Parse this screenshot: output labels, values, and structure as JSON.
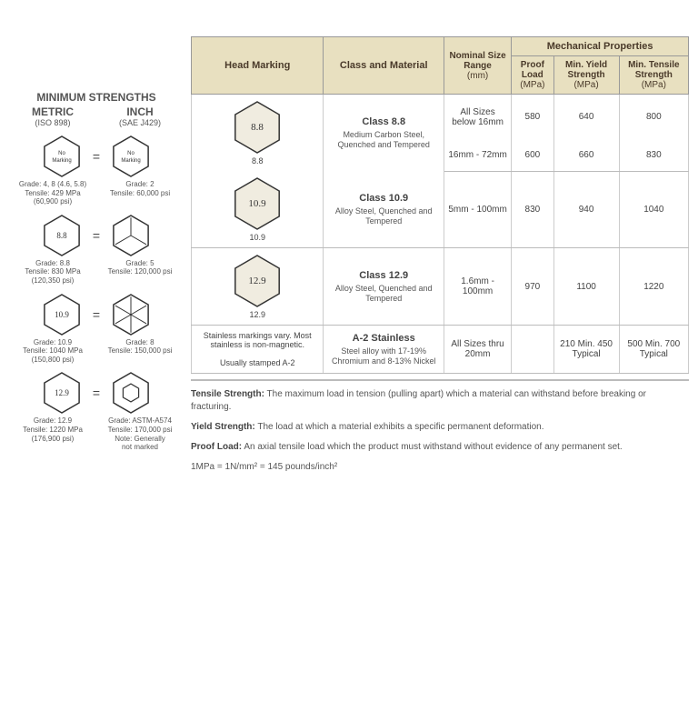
{
  "left": {
    "title": "MINIMUM STRENGTHS",
    "metric": {
      "label": "METRIC",
      "sub": "(ISO 898)"
    },
    "inch": {
      "label": "INCH",
      "sub": "(SAE J429)"
    },
    "rows": [
      {
        "metric_mark": "No Marking",
        "inch_mark": "No Marking",
        "metric_text": "Grade: 4, 8 (4.6, 5.8)\nTensile: 429 MPa\n(60,900 psi)",
        "inch_text": "Grade: 2\nTensile: 60,000 psi",
        "inch_radial": 0
      },
      {
        "metric_mark": "8.8",
        "inch_mark": "",
        "metric_text": "Grade: 8.8\nTensile: 830 MPa\n(120,350 psi)",
        "inch_text": "Grade: 5\nTensile: 120,000 psi",
        "inch_radial": 3
      },
      {
        "metric_mark": "10.9",
        "inch_mark": "",
        "metric_text": "Grade: 10.9\nTensile: 1040 MPa\n(150,800 psi)",
        "inch_text": "Grade: 8\nTensile: 150,000 psi",
        "inch_radial": 6
      },
      {
        "metric_mark": "12.9",
        "inch_mark": "",
        "metric_text": "Grade: 12.9\nTensile: 1220 MPa\n(176,900 psi)",
        "inch_text": "Grade: ASTM-A574\nTensile: 170,000 psi\nNote: Generally\nnot marked",
        "inch_small_hex": true
      }
    ]
  },
  "table": {
    "headers": {
      "head_marking": "Head Marking",
      "class_material": "Class and Material",
      "nominal": "Nominal Size Range",
      "nominal_unit": "(mm)",
      "mech": "Mechanical Properties",
      "proof": "Proof Load",
      "proof_unit": "(MPa)",
      "yield": "Min. Yield Strength",
      "yield_unit": "(MPa)",
      "tensile": "Min. Tensile Strength",
      "tensile_unit": "(MPa)"
    },
    "rows": [
      {
        "marking": "8.8",
        "marking_label": "8.8",
        "class": "Class 8.8",
        "desc": "Medium Carbon Steel, Quenched and Tempered",
        "sub": [
          {
            "size": "All Sizes below 16mm",
            "proof": "580",
            "yield": "640",
            "tensile": "800"
          },
          {
            "size": "16mm - 72mm",
            "proof": "600",
            "yield": "660",
            "tensile": "830"
          }
        ]
      },
      {
        "marking": "10.9",
        "marking_label": "10.9",
        "class": "Class 10.9",
        "desc": "Alloy Steel, Quenched and Tempered",
        "sub": [
          {
            "size": "5mm - 100mm",
            "proof": "830",
            "yield": "940",
            "tensile": "1040"
          }
        ]
      },
      {
        "marking": "12.9",
        "marking_label": "12.9",
        "class": "Class 12.9",
        "desc": "Alloy Steel, Quenched and Tempered",
        "sub": [
          {
            "size": "1.6mm - 100mm",
            "proof": "970",
            "yield": "1100",
            "tensile": "1220"
          }
        ]
      },
      {
        "marking_text": "Stainless markings vary. Most stainless is non-magnetic.\n\nUsually stamped A-2",
        "class": "A-2 Stainless",
        "desc": "Steel alloy with 17-19% Chromium and 8-13% Nickel",
        "sub": [
          {
            "size": "All Sizes thru 20mm",
            "proof": "",
            "yield": "210 Min. 450 Typical",
            "tensile": "500 Min. 700 Typical"
          }
        ]
      }
    ]
  },
  "defs": {
    "tensile": "Tensile Strength: The maximum load in tension (pulling apart) which a material can withstand before breaking or fracturing.",
    "yield": "Yield Strength: The load at which a material exhibits a specific permanent deformation.",
    "proof": "Proof Load: An axial tensile load which the product must withstand without evidence of any permanent set.",
    "conv": "1MPa = 1N/mm² = 145 pounds/inch²"
  }
}
